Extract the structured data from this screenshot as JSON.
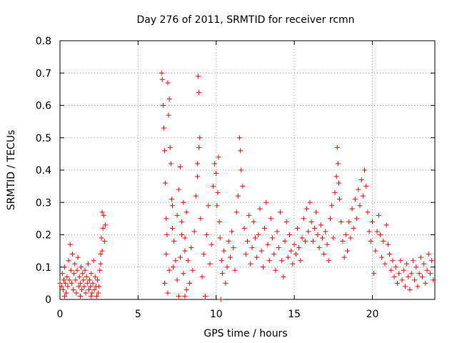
{
  "chart_data": {
    "type": "scatter",
    "title": "Day 276 of 2011, SRMTID for receiver rcmn",
    "xlabel": "GPS time / hours",
    "ylabel": "SRMTID / TECUs",
    "xlim": [
      0,
      24
    ],
    "ylim": [
      0,
      0.8
    ],
    "x_ticks": [
      0,
      5,
      10,
      15,
      20
    ],
    "y_ticks": [
      0,
      0.1,
      0.2,
      0.3,
      0.4,
      0.5,
      0.6,
      0.7,
      0.8
    ],
    "x_tick_labels": [
      "0",
      "5",
      "10",
      "15",
      "20"
    ],
    "y_tick_labels": [
      "0",
      "0.1",
      "0.2",
      "0.3",
      "0.4",
      "0.5",
      "0.6",
      "0.7",
      "0.8"
    ],
    "grid": true,
    "marker": "+",
    "color": "#ff0000",
    "series": [
      {
        "name": "SRMTID",
        "points": [
          [
            0.0,
            0.05
          ],
          [
            0.1,
            0.04
          ],
          [
            0.15,
            0.08
          ],
          [
            0.2,
            0.03
          ],
          [
            0.25,
            0.06
          ],
          [
            0.3,
            0.1
          ],
          [
            0.35,
            0.05
          ],
          [
            0.4,
            0.02
          ],
          [
            0.45,
            0.07
          ],
          [
            0.5,
            0.04
          ],
          [
            0.55,
            0.12
          ],
          [
            0.6,
            0.06
          ],
          [
            0.65,
            0.17
          ],
          [
            0.7,
            0.09
          ],
          [
            0.75,
            0.05
          ],
          [
            0.8,
            0.14
          ],
          [
            0.85,
            0.03
          ],
          [
            0.9,
            0.08
          ],
          [
            0.95,
            0.11
          ],
          [
            1.0,
            0.06
          ],
          [
            1.05,
            0.02
          ],
          [
            1.1,
            0.09
          ],
          [
            1.15,
            0.13
          ],
          [
            1.2,
            0.04
          ],
          [
            1.25,
            0.07
          ],
          [
            1.3,
            0.05
          ],
          [
            1.35,
            0.1
          ],
          [
            1.4,
            0.03
          ],
          [
            1.45,
            0.08
          ],
          [
            1.5,
            0.06
          ],
          [
            1.55,
            0.04
          ],
          [
            1.6,
            0.09
          ],
          [
            1.65,
            0.02
          ],
          [
            1.7,
            0.07
          ],
          [
            1.75,
            0.05
          ],
          [
            1.8,
            0.11
          ],
          [
            1.85,
            0.03
          ],
          [
            1.9,
            0.06
          ],
          [
            1.95,
            0.04
          ],
          [
            2.0,
            0.08
          ],
          [
            2.05,
            0.02
          ],
          [
            2.1,
            0.05
          ],
          [
            2.15,
            0.12
          ],
          [
            2.2,
            0.03
          ],
          [
            2.25,
            0.07
          ],
          [
            2.3,
            0.04
          ],
          [
            2.35,
            0.01
          ],
          [
            2.4,
            0.06
          ],
          [
            2.45,
            0.02
          ],
          [
            2.5,
            0.04
          ],
          [
            2.55,
            0.09
          ],
          [
            2.6,
            0.14
          ],
          [
            2.65,
            0.19
          ],
          [
            2.7,
            0.15
          ],
          [
            2.75,
            0.22
          ],
          [
            2.8,
            0.26
          ],
          [
            2.85,
            0.18
          ],
          [
            2.9,
            0.23
          ],
          [
            2.7,
            0.27
          ],
          [
            2.6,
            0.11
          ],
          [
            6.5,
            0.7
          ],
          [
            6.55,
            0.68
          ],
          [
            6.6,
            0.6
          ],
          [
            6.65,
            0.53
          ],
          [
            6.7,
            0.46
          ],
          [
            6.75,
            0.36
          ],
          [
            6.8,
            0.25
          ],
          [
            6.85,
            0.2
          ],
          [
            6.9,
            0.67
          ],
          [
            6.95,
            0.57
          ],
          [
            7.0,
            0.62
          ],
          [
            7.05,
            0.47
          ],
          [
            7.1,
            0.42
          ],
          [
            7.15,
            0.31
          ],
          [
            7.2,
            0.22
          ],
          [
            7.25,
            0.1
          ],
          [
            6.7,
            0.05
          ],
          [
            6.8,
            0.14
          ],
          [
            6.9,
            0.02
          ],
          [
            7.0,
            0.09
          ],
          [
            7.2,
            0.29
          ],
          [
            7.3,
            0.18
          ],
          [
            7.4,
            0.12
          ],
          [
            7.5,
            0.26
          ],
          [
            7.6,
            0.34
          ],
          [
            7.7,
            0.41
          ],
          [
            7.8,
            0.2
          ],
          [
            7.9,
            0.08
          ],
          [
            8.0,
            0.15
          ],
          [
            8.1,
            0.03
          ],
          [
            7.5,
            0.06
          ],
          [
            7.6,
            0.01
          ],
          [
            7.7,
            0.13
          ],
          [
            7.8,
            0.24
          ],
          [
            7.9,
            0.3
          ],
          [
            8.0,
            0.19
          ],
          [
            8.1,
            0.27
          ],
          [
            8.2,
            0.12
          ],
          [
            8.3,
            0.05
          ],
          [
            8.4,
            0.16
          ],
          [
            8.5,
            0.09
          ],
          [
            8.6,
            0.21
          ],
          [
            8.7,
            0.32
          ],
          [
            8.8,
            0.38
          ],
          [
            8.85,
            0.69
          ],
          [
            8.9,
            0.64
          ],
          [
            8.95,
            0.5
          ],
          [
            8.8,
            0.42
          ],
          [
            8.9,
            0.47
          ],
          [
            9.0,
            0.25
          ],
          [
            9.1,
            0.07
          ],
          [
            9.2,
            0.14
          ],
          [
            9.3,
            0.01
          ],
          [
            9.4,
            0.2
          ],
          [
            9.5,
            0.29
          ],
          [
            9.6,
            0.11
          ],
          [
            9.7,
            0.17
          ],
          [
            9.8,
            0.35
          ],
          [
            9.9,
            0.42
          ],
          [
            10.0,
            0.39
          ],
          [
            10.1,
            0.33
          ],
          [
            10.05,
            0.29
          ],
          [
            10.15,
            0.44
          ],
          [
            10.2,
            0.24
          ],
          [
            10.25,
            0.19
          ],
          [
            10.3,
            0.0
          ],
          [
            10.35,
            0.12
          ],
          [
            10.4,
            0.08
          ],
          [
            10.5,
            0.15
          ],
          [
            10.6,
            0.05
          ],
          [
            10.7,
            0.1
          ],
          [
            10.8,
            0.18
          ],
          [
            10.9,
            0.13
          ],
          [
            11.0,
            0.21
          ],
          [
            11.1,
            0.16
          ],
          [
            11.2,
            0.09
          ],
          [
            11.3,
            0.27
          ],
          [
            11.4,
            0.32
          ],
          [
            11.5,
            0.5
          ],
          [
            11.55,
            0.46
          ],
          [
            11.6,
            0.4
          ],
          [
            11.7,
            0.35
          ],
          [
            11.8,
            0.22
          ],
          [
            11.9,
            0.14
          ],
          [
            12.0,
            0.18
          ],
          [
            12.1,
            0.26
          ],
          [
            12.2,
            0.11
          ],
          [
            12.3,
            0.16
          ],
          [
            12.4,
            0.24
          ],
          [
            12.5,
            0.19
          ],
          [
            12.6,
            0.13
          ],
          [
            12.7,
            0.2
          ],
          [
            12.8,
            0.28
          ],
          [
            12.9,
            0.15
          ],
          [
            13.0,
            0.1
          ],
          [
            13.1,
            0.22
          ],
          [
            13.2,
            0.3
          ],
          [
            13.3,
            0.17
          ],
          [
            13.4,
            0.12
          ],
          [
            13.5,
            0.25
          ],
          [
            13.6,
            0.19
          ],
          [
            13.7,
            0.14
          ],
          [
            13.8,
            0.09
          ],
          [
            13.9,
            0.21
          ],
          [
            14.0,
            0.16
          ],
          [
            14.1,
            0.27
          ],
          [
            14.2,
            0.12
          ],
          [
            14.3,
            0.07
          ],
          [
            14.4,
            0.18
          ],
          [
            14.5,
            0.24
          ],
          [
            14.6,
            0.13
          ],
          [
            14.7,
            0.2
          ],
          [
            14.8,
            0.15
          ],
          [
            14.9,
            0.11
          ],
          [
            15.0,
            0.17
          ],
          [
            15.1,
            0.14
          ],
          [
            15.2,
            0.22
          ],
          [
            15.3,
            0.16
          ],
          [
            15.4,
            0.12
          ],
          [
            15.5,
            0.19
          ],
          [
            15.6,
            0.25
          ],
          [
            15.7,
            0.18
          ],
          [
            15.8,
            0.28
          ],
          [
            15.9,
            0.21
          ],
          [
            16.0,
            0.3
          ],
          [
            16.1,
            0.24
          ],
          [
            16.2,
            0.18
          ],
          [
            16.3,
            0.22
          ],
          [
            16.4,
            0.27
          ],
          [
            16.5,
            0.2
          ],
          [
            16.6,
            0.16
          ],
          [
            16.7,
            0.23
          ],
          [
            16.8,
            0.19
          ],
          [
            16.9,
            0.14
          ],
          [
            17.0,
            0.21
          ],
          [
            17.1,
            0.17
          ],
          [
            17.2,
            0.12
          ],
          [
            17.3,
            0.25
          ],
          [
            17.4,
            0.29
          ],
          [
            17.5,
            0.19
          ],
          [
            17.6,
            0.33
          ],
          [
            17.7,
            0.38
          ],
          [
            17.75,
            0.47
          ],
          [
            17.8,
            0.42
          ],
          [
            17.85,
            0.36
          ],
          [
            17.9,
            0.31
          ],
          [
            18.0,
            0.24
          ],
          [
            18.1,
            0.18
          ],
          [
            18.2,
            0.13
          ],
          [
            18.3,
            0.2
          ],
          [
            18.4,
            0.15
          ],
          [
            18.5,
            0.24
          ],
          [
            18.6,
            0.19
          ],
          [
            18.7,
            0.28
          ],
          [
            18.8,
            0.22
          ],
          [
            18.9,
            0.31
          ],
          [
            19.0,
            0.25
          ],
          [
            19.1,
            0.34
          ],
          [
            19.2,
            0.29
          ],
          [
            19.3,
            0.37
          ],
          [
            19.4,
            0.32
          ],
          [
            19.5,
            0.4
          ],
          [
            19.6,
            0.35
          ],
          [
            19.7,
            0.27
          ],
          [
            19.8,
            0.21
          ],
          [
            19.9,
            0.18
          ],
          [
            20.0,
            0.24
          ],
          [
            20.1,
            0.08
          ],
          [
            20.2,
            0.15
          ],
          [
            20.3,
            0.21
          ],
          [
            20.4,
            0.26
          ],
          [
            20.5,
            0.2
          ],
          [
            20.6,
            0.13
          ],
          [
            20.7,
            0.18
          ],
          [
            20.8,
            0.11
          ],
          [
            20.9,
            0.23
          ],
          [
            21.0,
            0.17
          ],
          [
            21.1,
            0.14
          ],
          [
            21.2,
            0.09
          ],
          [
            21.3,
            0.12
          ],
          [
            21.4,
            0.07
          ],
          [
            21.5,
            0.1
          ],
          [
            21.6,
            0.05
          ],
          [
            21.7,
            0.08
          ],
          [
            21.8,
            0.12
          ],
          [
            21.9,
            0.06
          ],
          [
            22.0,
            0.09
          ],
          [
            22.1,
            0.04
          ],
          [
            22.2,
            0.11
          ],
          [
            22.3,
            0.07
          ],
          [
            22.4,
            0.03
          ],
          [
            22.5,
            0.08
          ],
          [
            22.6,
            0.12
          ],
          [
            22.7,
            0.06
          ],
          [
            22.8,
            0.1
          ],
          [
            22.9,
            0.04
          ],
          [
            23.0,
            0.08
          ],
          [
            23.1,
            0.13
          ],
          [
            23.2,
            0.07
          ],
          [
            23.3,
            0.11
          ],
          [
            23.4,
            0.05
          ],
          [
            23.5,
            0.09
          ],
          [
            23.6,
            0.14
          ],
          [
            23.7,
            0.08
          ],
          [
            23.8,
            0.12
          ],
          [
            23.9,
            0.06
          ],
          [
            0.3,
            0.01
          ],
          [
            1.3,
            0.01
          ],
          [
            2.0,
            0.01
          ],
          [
            8.0,
            0.01
          ]
        ]
      }
    ]
  }
}
